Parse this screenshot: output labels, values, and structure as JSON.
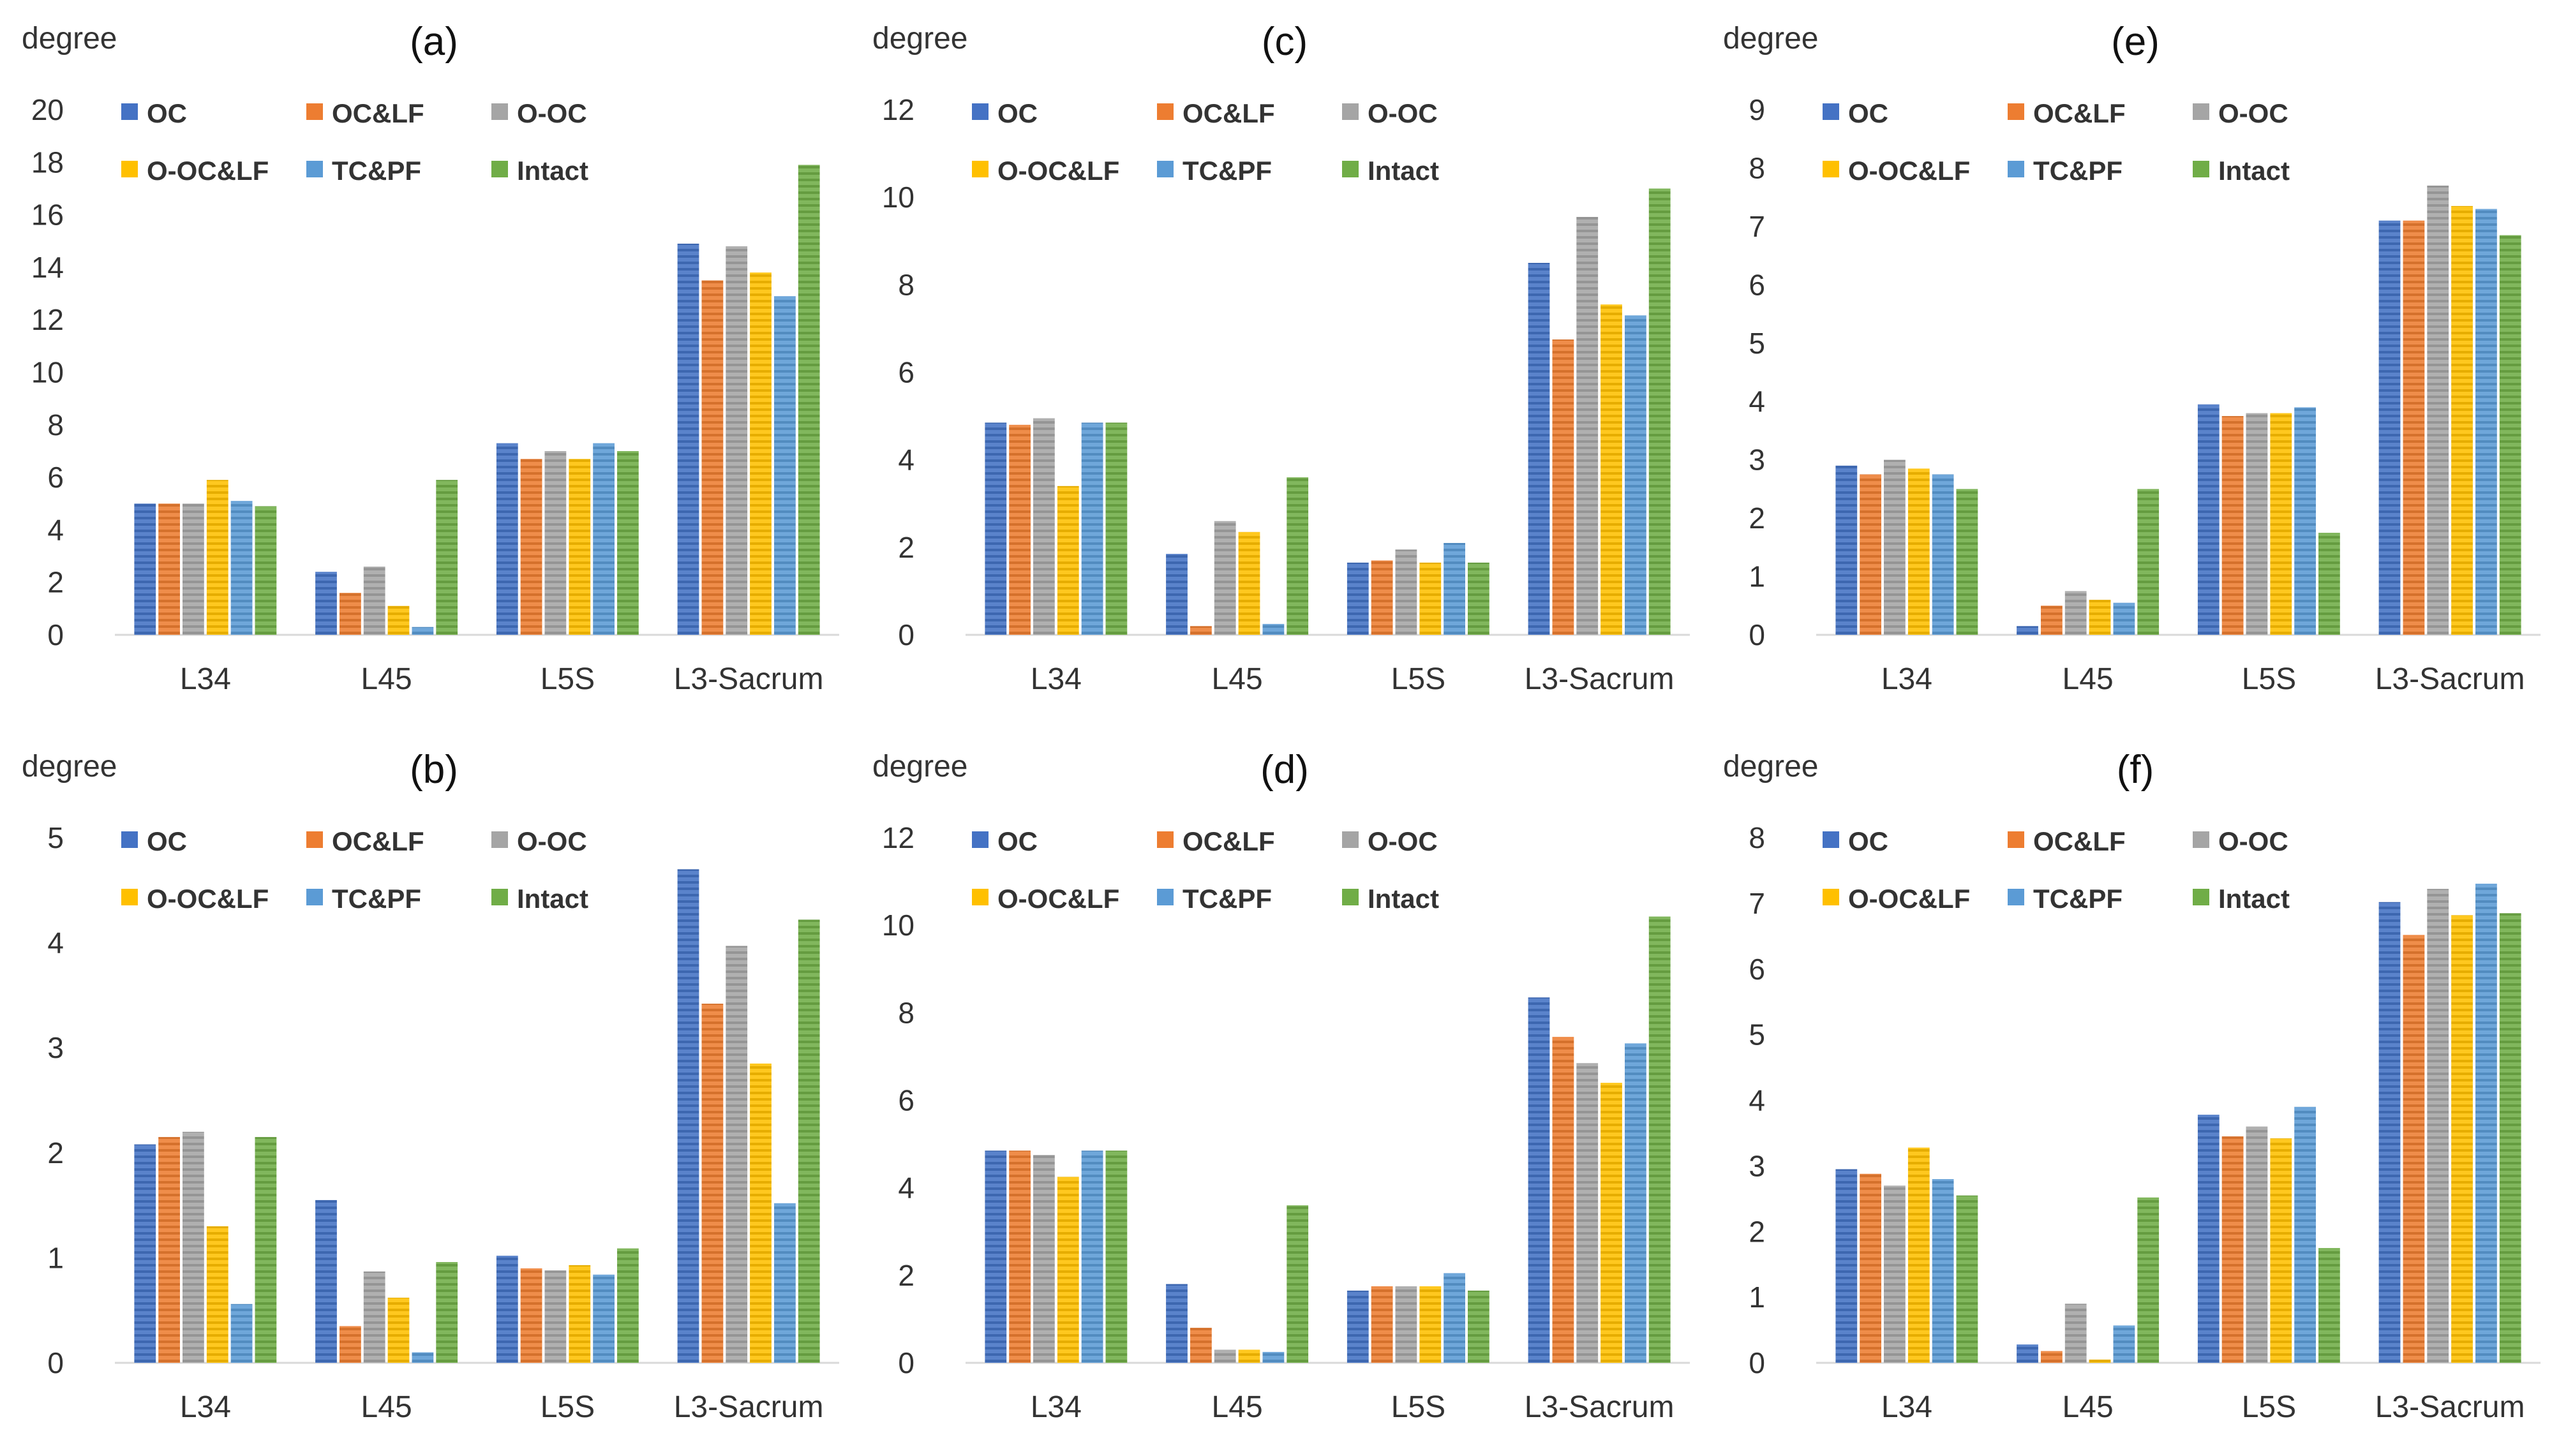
{
  "colors": {
    "OC": "#4472c4",
    "OC&LF": "#ed7d31",
    "O-OC": "#a5a5a5",
    "O-OC&LF": "#ffc000",
    "TC&PF": "#5b9bd5",
    "Intact": "#70ad47"
  },
  "chart_data": [
    {
      "id": "a",
      "type": "bar",
      "title": "(a)",
      "ylabel": "degree",
      "xlabel": "",
      "categories": [
        "L34",
        "L45",
        "L5S",
        "L3-Sacrum"
      ],
      "ylim": [
        0,
        20
      ],
      "yticks": [
        0,
        2,
        4,
        6,
        8,
        10,
        12,
        14,
        16,
        18,
        20
      ],
      "legend": "top-left",
      "series": [
        {
          "name": "OC",
          "values": [
            5.0,
            2.4,
            7.3,
            14.9
          ]
        },
        {
          "name": "OC&LF",
          "values": [
            5.0,
            1.6,
            6.7,
            13.5
          ]
        },
        {
          "name": "O-OC",
          "values": [
            5.0,
            2.6,
            7.0,
            14.8
          ]
        },
        {
          "name": "O-OC&LF",
          "values": [
            5.9,
            1.1,
            6.7,
            13.8
          ]
        },
        {
          "name": "TC&PF",
          "values": [
            5.1,
            0.3,
            7.3,
            12.9
          ]
        },
        {
          "name": "Intact",
          "values": [
            4.9,
            5.9,
            7.0,
            17.9
          ]
        }
      ]
    },
    {
      "id": "c",
      "type": "bar",
      "title": "(c)",
      "ylabel": "degree",
      "xlabel": "",
      "categories": [
        "L34",
        "L45",
        "L5S",
        "L3-Sacrum"
      ],
      "ylim": [
        0,
        12
      ],
      "yticks": [
        0,
        2,
        4,
        6,
        8,
        10,
        12
      ],
      "legend": "top-left",
      "series": [
        {
          "name": "OC",
          "values": [
            4.85,
            1.85,
            1.65,
            8.5
          ]
        },
        {
          "name": "OC&LF",
          "values": [
            4.8,
            0.2,
            1.7,
            6.75
          ]
        },
        {
          "name": "O-OC",
          "values": [
            4.95,
            2.6,
            1.95,
            9.55
          ]
        },
        {
          "name": "O-OC&LF",
          "values": [
            3.4,
            2.35,
            1.65,
            7.55
          ]
        },
        {
          "name": "TC&PF",
          "values": [
            4.85,
            0.25,
            2.1,
            7.3
          ]
        },
        {
          "name": "Intact",
          "values": [
            4.85,
            3.6,
            1.65,
            10.2
          ]
        }
      ]
    },
    {
      "id": "e",
      "type": "bar",
      "title": "(e)",
      "ylabel": "degree",
      "xlabel": "",
      "categories": [
        "L34",
        "L45",
        "L5S",
        "L3-Sacrum"
      ],
      "ylim": [
        0,
        9
      ],
      "yticks": [
        0,
        1,
        2,
        3,
        4,
        5,
        6,
        7,
        8,
        9
      ],
      "legend": "top-left",
      "series": [
        {
          "name": "OC",
          "values": [
            2.9,
            0.15,
            3.95,
            7.1
          ]
        },
        {
          "name": "OC&LF",
          "values": [
            2.75,
            0.5,
            3.75,
            7.1
          ]
        },
        {
          "name": "O-OC",
          "values": [
            3.0,
            0.75,
            3.8,
            7.7
          ]
        },
        {
          "name": "O-OC&LF",
          "values": [
            2.85,
            0.6,
            3.8,
            7.35
          ]
        },
        {
          "name": "TC&PF",
          "values": [
            2.75,
            0.55,
            3.9,
            7.3
          ]
        },
        {
          "name": "Intact",
          "values": [
            2.5,
            2.5,
            1.75,
            6.85
          ]
        }
      ]
    },
    {
      "id": "b",
      "type": "bar",
      "title": "(b)",
      "ylabel": "degree",
      "xlabel": "",
      "categories": [
        "L34",
        "L45",
        "L5S",
        "L3-Sacrum"
      ],
      "ylim": [
        0,
        5
      ],
      "yticks": [
        0,
        1,
        2,
        3,
        4,
        5
      ],
      "legend": "top-left",
      "series": [
        {
          "name": "OC",
          "values": [
            2.08,
            1.55,
            1.02,
            4.7
          ]
        },
        {
          "name": "OC&LF",
          "values": [
            2.15,
            0.35,
            0.9,
            3.42
          ]
        },
        {
          "name": "O-OC",
          "values": [
            2.2,
            0.87,
            0.88,
            3.97
          ]
        },
        {
          "name": "O-OC&LF",
          "values": [
            1.3,
            0.62,
            0.93,
            2.85
          ]
        },
        {
          "name": "TC&PF",
          "values": [
            0.56,
            0.1,
            0.84,
            1.52
          ]
        },
        {
          "name": "Intact",
          "values": [
            2.15,
            0.96,
            1.09,
            4.22
          ]
        }
      ]
    },
    {
      "id": "d",
      "type": "bar",
      "title": "(d)",
      "ylabel": "degree",
      "xlabel": "",
      "categories": [
        "L34",
        "L45",
        "L5S",
        "L3-Sacrum"
      ],
      "ylim": [
        0,
        12
      ],
      "yticks": [
        0,
        2,
        4,
        6,
        8,
        10,
        12
      ],
      "legend": "top-left",
      "series": [
        {
          "name": "OC",
          "values": [
            4.85,
            1.8,
            1.65,
            8.35
          ]
        },
        {
          "name": "OC&LF",
          "values": [
            4.85,
            0.8,
            1.75,
            7.45
          ]
        },
        {
          "name": "O-OC",
          "values": [
            4.75,
            0.3,
            1.75,
            6.85
          ]
        },
        {
          "name": "O-OC&LF",
          "values": [
            4.25,
            0.3,
            1.75,
            6.4
          ]
        },
        {
          "name": "TC&PF",
          "values": [
            4.85,
            0.25,
            2.05,
            7.3
          ]
        },
        {
          "name": "Intact",
          "values": [
            4.85,
            3.6,
            1.65,
            10.2
          ]
        }
      ]
    },
    {
      "id": "f",
      "type": "bar",
      "title": "(f)",
      "ylabel": "degree",
      "xlabel": "",
      "categories": [
        "L34",
        "L45",
        "L5S",
        "L3-Sacrum"
      ],
      "ylim": [
        0,
        8
      ],
      "yticks": [
        0,
        1,
        2,
        3,
        4,
        5,
        6,
        7,
        8
      ],
      "legend": "top-left",
      "series": [
        {
          "name": "OC",
          "values": [
            2.95,
            0.28,
            3.78,
            7.02
          ]
        },
        {
          "name": "OC&LF",
          "values": [
            2.88,
            0.18,
            3.45,
            6.52
          ]
        },
        {
          "name": "O-OC",
          "values": [
            2.7,
            0.9,
            3.6,
            7.22
          ]
        },
        {
          "name": "O-OC&LF",
          "values": [
            3.28,
            0.05,
            3.42,
            6.82
          ]
        },
        {
          "name": "TC&PF",
          "values": [
            2.8,
            0.57,
            3.9,
            7.3
          ]
        },
        {
          "name": "Intact",
          "values": [
            2.55,
            2.52,
            1.75,
            6.85
          ]
        }
      ]
    }
  ]
}
